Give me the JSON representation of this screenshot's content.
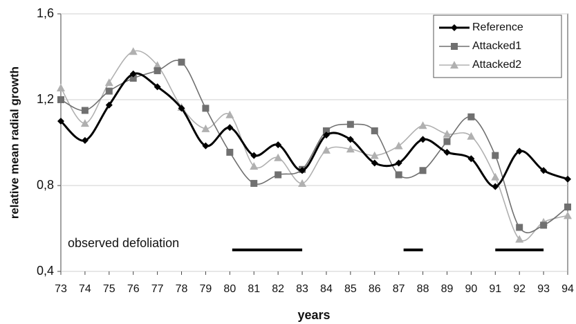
{
  "chart_data": {
    "type": "line",
    "x_label": "years",
    "y_label": "relative mean radial growth",
    "x": [
      73,
      74,
      75,
      76,
      77,
      78,
      79,
      80,
      81,
      82,
      83,
      84,
      85,
      86,
      87,
      88,
      89,
      90,
      91,
      92,
      93,
      94
    ],
    "xlim": [
      73,
      94
    ],
    "xticks": [
      73,
      74,
      75,
      76,
      77,
      78,
      79,
      80,
      81,
      82,
      83,
      84,
      85,
      86,
      87,
      88,
      89,
      90,
      91,
      92,
      93,
      94
    ],
    "ylim": [
      0.4,
      1.6
    ],
    "yticks": [
      {
        "value": 0.4,
        "label": "0,4"
      },
      {
        "value": 0.8,
        "label": "0,8"
      },
      {
        "value": 1.2,
        "label": "1,2"
      },
      {
        "value": 1.6,
        "label": "1,6"
      }
    ],
    "grid": true,
    "legend": "upper right",
    "series": [
      {
        "name": "Reference",
        "color": "#000000",
        "marker": "diamond",
        "values": [
          1.1,
          1.01,
          1.175,
          1.32,
          1.26,
          1.16,
          0.985,
          1.07,
          0.94,
          0.99,
          0.87,
          1.035,
          1.015,
          0.905,
          0.905,
          1.015,
          0.955,
          0.925,
          0.795,
          0.96,
          0.87,
          0.83
        ]
      },
      {
        "name": "Attacked1",
        "color": "#707070",
        "marker": "square",
        "values": [
          1.2,
          1.15,
          1.24,
          1.3,
          1.335,
          1.375,
          1.16,
          0.955,
          0.81,
          0.85,
          0.875,
          1.055,
          1.085,
          1.055,
          0.85,
          0.87,
          1.005,
          1.12,
          0.94,
          0.605,
          0.615,
          0.7
        ]
      },
      {
        "name": "Attacked2",
        "color": "#b0b0b0",
        "marker": "triangle",
        "values": [
          1.255,
          1.09,
          1.28,
          1.425,
          1.36,
          1.165,
          1.065,
          1.13,
          0.89,
          0.93,
          0.81,
          0.965,
          0.97,
          0.94,
          0.985,
          1.08,
          1.04,
          1.03,
          0.84,
          0.55,
          0.63,
          0.66
        ]
      }
    ],
    "defoliation": {
      "label": "observed defoliation",
      "level": 0.5,
      "periods": [
        [
          80.1,
          83
        ],
        [
          87.2,
          88
        ],
        [
          91,
          93
        ]
      ]
    }
  }
}
